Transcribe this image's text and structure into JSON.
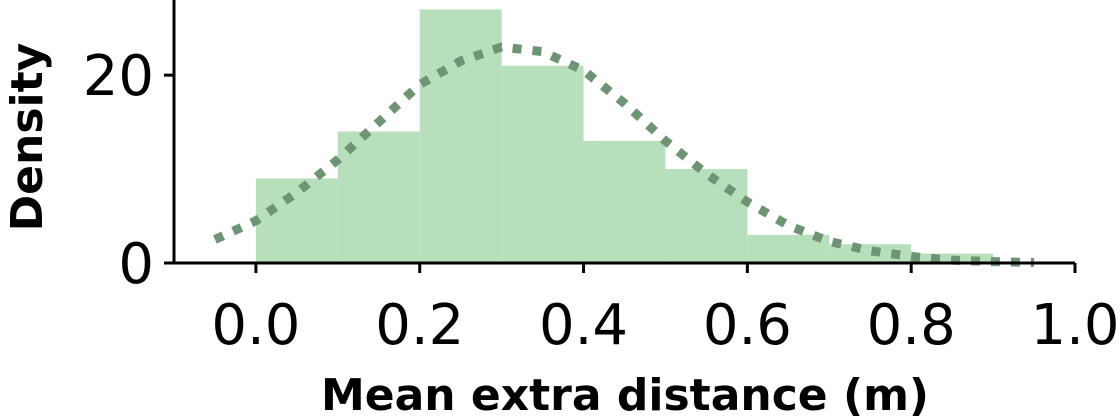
{
  "chart_data": {
    "type": "bar",
    "title": "",
    "xlabel": "Mean extra distance (m)",
    "ylabel": "Density",
    "xlim": [
      -0.1,
      1.0
    ],
    "ylim": [
      0,
      28
    ],
    "x_ticks": [
      0.0,
      0.2,
      0.4,
      0.6,
      0.8,
      1.0
    ],
    "x_tick_labels": [
      "0.0",
      "0.2",
      "0.4",
      "0.6",
      "0.8",
      "1.0"
    ],
    "y_ticks": [
      0,
      20
    ],
    "y_tick_labels": [
      "0",
      "20"
    ],
    "grid": false,
    "bar_color": "#b8dfbc",
    "curve_color": "#6f9473",
    "bins": [
      {
        "x0": 0.0,
        "x1": 0.1,
        "value": 9
      },
      {
        "x0": 0.1,
        "x1": 0.2,
        "value": 14
      },
      {
        "x0": 0.2,
        "x1": 0.3,
        "value": 27
      },
      {
        "x0": 0.3,
        "x1": 0.4,
        "value": 21
      },
      {
        "x0": 0.4,
        "x1": 0.5,
        "value": 13
      },
      {
        "x0": 0.5,
        "x1": 0.6,
        "value": 10
      },
      {
        "x0": 0.6,
        "x1": 0.7,
        "value": 3
      },
      {
        "x0": 0.7,
        "x1": 0.8,
        "value": 2
      },
      {
        "x0": 0.8,
        "x1": 0.9,
        "value": 1
      },
      {
        "x0": 0.9,
        "x1": 1.0,
        "value": 0
      }
    ],
    "density_curve": {
      "style": "dotted",
      "x": [
        -0.05,
        0.0,
        0.05,
        0.1,
        0.15,
        0.2,
        0.25,
        0.3,
        0.35,
        0.4,
        0.45,
        0.5,
        0.55,
        0.6,
        0.65,
        0.7,
        0.75,
        0.8,
        0.85,
        0.9,
        0.95
      ],
      "y": [
        2.5,
        4.5,
        7.5,
        11,
        15,
        19,
        21.5,
        23,
        22.5,
        20.5,
        17,
        13,
        9.5,
        6.5,
        4,
        2.3,
        1.3,
        0.7,
        0.3,
        0.15,
        0.05
      ]
    }
  }
}
